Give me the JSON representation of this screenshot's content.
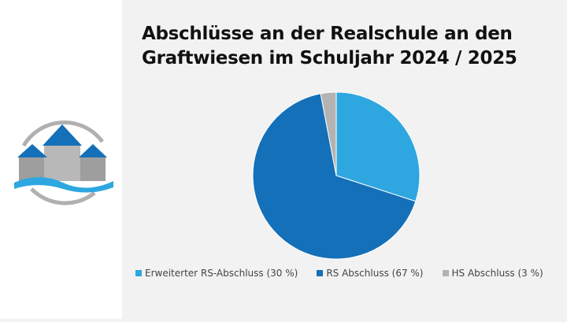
{
  "chart_data": {
    "type": "pie",
    "title": "Abschlüsse an der Realschule an den Graftwiesen im Schuljahr 2024 / 2025",
    "categories": [
      "Erweiterter RS-Abschluss (30 %)",
      "RS Abschluss (67 %)",
      "HS Abschluss (3 %)"
    ],
    "values": [
      30,
      67,
      3
    ],
    "colors": [
      "#2ea7e0",
      "#1470b8",
      "#b3b3b3"
    ],
    "legend": "bottom"
  }
}
